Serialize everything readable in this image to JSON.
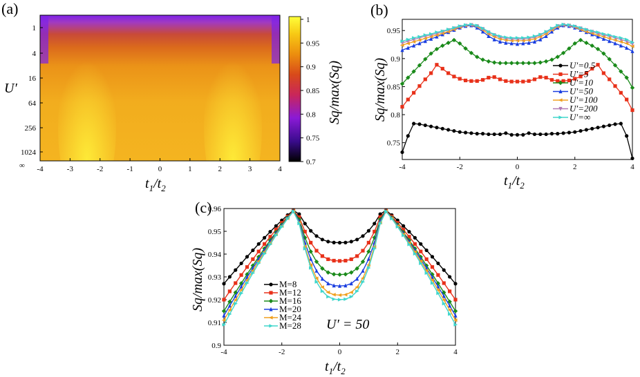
{
  "chart_data": [
    {
      "panel_label": "(a)",
      "type": "heatmap",
      "xlabel": "t1/t2",
      "ylabel": "U′",
      "x_ticks": [
        "-4",
        "-3",
        "-2",
        "-1",
        "0",
        "1",
        "2",
        "3",
        "4"
      ],
      "y_ticks": [
        "1",
        "4",
        "16",
        "64",
        "256",
        "1024",
        "∞"
      ],
      "xlim": [
        -4,
        4
      ],
      "colorbar": {
        "label": "Sq/max(Sq)",
        "range": [
          0.7,
          1.0
        ],
        "ticks": [
          "1",
          "0.95",
          "0.9",
          "0.85",
          "0.8",
          "0.75",
          "0.7"
        ],
        "colors": [
          "#000000",
          "#3a0c8c",
          "#8a1ad6",
          "#c9265a",
          "#d84a1a",
          "#ec8e0e",
          "#f7c914",
          "#ffff3a"
        ]
      }
    },
    {
      "panel_label": "(b)",
      "type": "line",
      "xlabel": "t1/t2",
      "ylabel": "Sq/max(Sq)",
      "xlim": [
        -4,
        4
      ],
      "ylim": [
        0.72,
        0.97
      ],
      "x_ticks": [
        "-4",
        "-2",
        "0",
        "2",
        "4"
      ],
      "y_ticks": [
        "0.75",
        "0.8",
        "0.85",
        "0.9",
        "0.95"
      ],
      "x": [
        -4,
        -3.8,
        -3.6,
        -3.4,
        -3.2,
        -3,
        -2.8,
        -2.6,
        -2.4,
        -2.2,
        -2,
        -1.8,
        -1.6,
        -1.4,
        -1.2,
        -1,
        -0.8,
        -0.6,
        -0.4,
        -0.2,
        0,
        0.2,
        0.4,
        0.6,
        0.8,
        1,
        1.2,
        1.4,
        1.6,
        1.8,
        2,
        2.2,
        2.4,
        2.6,
        2.8,
        3,
        3.2,
        3.4,
        3.6,
        3.8,
        4
      ],
      "series": [
        {
          "name": "U′=0.5",
          "color": "#000000",
          "marker": "circle",
          "values": [
            0.733,
            0.762,
            0.784,
            0.783,
            0.781,
            0.779,
            0.777,
            0.775,
            0.773,
            0.771,
            0.769,
            0.768,
            0.767,
            0.766,
            0.766,
            0.765,
            0.765,
            0.765,
            0.767,
            0.764,
            0.764,
            0.764,
            0.767,
            0.765,
            0.765,
            0.765,
            0.766,
            0.766,
            0.767,
            0.768,
            0.769,
            0.771,
            0.773,
            0.775,
            0.777,
            0.779,
            0.781,
            0.783,
            0.784,
            0.762,
            0.722
          ]
        },
        {
          "name": "U′=5",
          "color": "#e8311a",
          "marker": "square",
          "values": [
            0.814,
            0.827,
            0.839,
            0.851,
            0.863,
            0.874,
            0.889,
            0.882,
            0.874,
            0.868,
            0.864,
            0.861,
            0.86,
            0.86,
            0.862,
            0.866,
            0.867,
            0.863,
            0.86,
            0.859,
            0.859,
            0.859,
            0.86,
            0.863,
            0.867,
            0.866,
            0.862,
            0.86,
            0.86,
            0.861,
            0.864,
            0.868,
            0.874,
            0.882,
            0.889,
            0.874,
            0.863,
            0.851,
            0.839,
            0.827,
            0.808
          ]
        },
        {
          "name": "U′=10",
          "color": "#1a8a1a",
          "marker": "diamond",
          "values": [
            0.855,
            0.866,
            0.877,
            0.888,
            0.899,
            0.909,
            0.917,
            0.923,
            0.928,
            0.933,
            0.927,
            0.918,
            0.91,
            0.903,
            0.898,
            0.895,
            0.893,
            0.892,
            0.892,
            0.892,
            0.892,
            0.892,
            0.892,
            0.892,
            0.893,
            0.895,
            0.898,
            0.903,
            0.91,
            0.918,
            0.927,
            0.933,
            0.928,
            0.923,
            0.917,
            0.909,
            0.899,
            0.888,
            0.877,
            0.866,
            0.848
          ]
        },
        {
          "name": "U′=50",
          "color": "#1a3ee0",
          "marker": "triangle",
          "values": [
            0.915,
            0.919,
            0.923,
            0.927,
            0.931,
            0.935,
            0.939,
            0.943,
            0.947,
            0.951,
            0.955,
            0.958,
            0.959,
            0.955,
            0.948,
            0.94,
            0.934,
            0.93,
            0.928,
            0.927,
            0.926,
            0.927,
            0.928,
            0.93,
            0.934,
            0.94,
            0.948,
            0.955,
            0.959,
            0.958,
            0.955,
            0.951,
            0.947,
            0.943,
            0.939,
            0.935,
            0.931,
            0.927,
            0.923,
            0.919,
            0.913
          ]
        },
        {
          "name": "U′=100",
          "color": "#f0a020",
          "marker": "triangle-left",
          "values": [
            0.924,
            0.927,
            0.93,
            0.933,
            0.936,
            0.939,
            0.942,
            0.945,
            0.948,
            0.952,
            0.956,
            0.959,
            0.96,
            0.957,
            0.951,
            0.944,
            0.939,
            0.935,
            0.933,
            0.932,
            0.932,
            0.932,
            0.933,
            0.935,
            0.939,
            0.944,
            0.951,
            0.957,
            0.96,
            0.959,
            0.956,
            0.952,
            0.948,
            0.945,
            0.942,
            0.939,
            0.936,
            0.933,
            0.93,
            0.927,
            0.922
          ]
        },
        {
          "name": "U′=200",
          "color": "#b07ab5",
          "marker": "triangle-down",
          "values": [
            0.928,
            0.931,
            0.934,
            0.937,
            0.94,
            0.942,
            0.945,
            0.948,
            0.951,
            0.954,
            0.957,
            0.959,
            0.96,
            0.958,
            0.953,
            0.947,
            0.942,
            0.938,
            0.936,
            0.935,
            0.935,
            0.935,
            0.936,
            0.938,
            0.942,
            0.947,
            0.953,
            0.958,
            0.96,
            0.959,
            0.957,
            0.954,
            0.951,
            0.948,
            0.945,
            0.942,
            0.94,
            0.937,
            0.934,
            0.931,
            0.926
          ]
        },
        {
          "name": "U′=∞",
          "color": "#3fd6cc",
          "marker": "triangle-right",
          "values": [
            0.931,
            0.934,
            0.937,
            0.939,
            0.942,
            0.944,
            0.947,
            0.949,
            0.952,
            0.955,
            0.958,
            0.96,
            0.961,
            0.959,
            0.954,
            0.948,
            0.943,
            0.94,
            0.938,
            0.937,
            0.937,
            0.937,
            0.938,
            0.94,
            0.943,
            0.948,
            0.954,
            0.959,
            0.961,
            0.96,
            0.958,
            0.955,
            0.952,
            0.949,
            0.947,
            0.944,
            0.942,
            0.939,
            0.937,
            0.934,
            0.929
          ]
        }
      ]
    },
    {
      "panel_label": "(c)",
      "type": "line",
      "xlabel": "t1/t2",
      "ylabel": "Sq/max(Sq)",
      "annotation": "U′ = 50",
      "xlim": [
        -4,
        4
      ],
      "ylim": [
        0.9,
        0.96
      ],
      "x_ticks": [
        "-4",
        "-2",
        "0",
        "2",
        "4"
      ],
      "y_ticks": [
        "0.9",
        "0.91",
        "0.92",
        "0.93",
        "0.94",
        "0.95",
        "0.96"
      ],
      "series": [
        {
          "name": "M=8",
          "color": "#000000",
          "marker": "circle",
          "min": 0.945,
          "edge": 0.927
        },
        {
          "name": "M=12",
          "color": "#e8311a",
          "marker": "square",
          "min": 0.937,
          "edge": 0.92
        },
        {
          "name": "M=16",
          "color": "#1a8a1a",
          "marker": "diamond",
          "min": 0.931,
          "edge": 0.915
        },
        {
          "name": "M=20",
          "color": "#1a3ee0",
          "marker": "triangle",
          "min": 0.926,
          "edge": 0.913
        },
        {
          "name": "M=24",
          "color": "#f0a020",
          "marker": "triangle-left",
          "min": 0.922,
          "edge": 0.911
        },
        {
          "name": "M=28",
          "color": "#3fd6cc",
          "marker": "triangle-right",
          "min": 0.92,
          "edge": 0.909
        }
      ],
      "peak": {
        "x": 1.5,
        "value": 0.96
      }
    }
  ]
}
